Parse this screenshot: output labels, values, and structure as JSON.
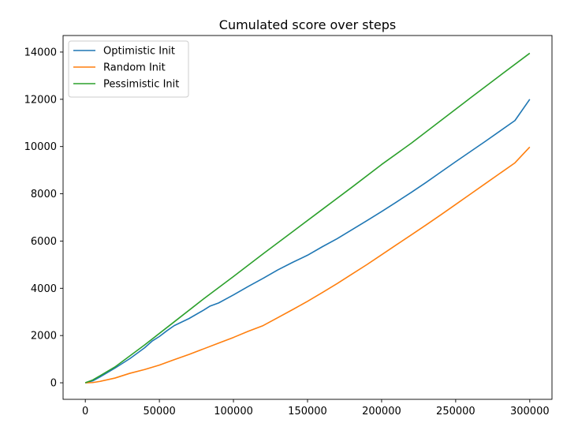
{
  "chart_data": {
    "type": "line",
    "title": "Cumulated score over steps",
    "xlabel": "",
    "ylabel": "",
    "xlim": [
      -15000,
      315000
    ],
    "ylim": [
      -700,
      14700
    ],
    "xticks": [
      0,
      50000,
      100000,
      150000,
      200000,
      250000,
      300000
    ],
    "yticks": [
      0,
      2000,
      4000,
      6000,
      8000,
      10000,
      12000,
      14000
    ],
    "grid": false,
    "legend_position": "top-left",
    "series": [
      {
        "name": "Optimistic Init",
        "color": "#1f77b4",
        "x": [
          0,
          5000,
          10000,
          20000,
          30000,
          40000,
          45000,
          50000,
          55000,
          60000,
          70000,
          80000,
          84000,
          90000,
          100000,
          110000,
          120000,
          130000,
          140000,
          150000,
          160000,
          170000,
          180000,
          190000,
          200000,
          210000,
          220000,
          230000,
          240000,
          250000,
          260000,
          270000,
          280000,
          290000,
          300000
        ],
        "y": [
          0,
          80,
          250,
          620,
          1020,
          1480,
          1760,
          1960,
          2200,
          2420,
          2720,
          3080,
          3240,
          3380,
          3720,
          4080,
          4420,
          4780,
          5100,
          5400,
          5760,
          6100,
          6480,
          6860,
          7250,
          7650,
          8060,
          8480,
          8920,
          9360,
          9790,
          10220,
          10660,
          11100,
          12000
        ]
      },
      {
        "name": "Random Init",
        "color": "#ff7f0e",
        "x": [
          0,
          5000,
          10000,
          20000,
          30000,
          40000,
          50000,
          60000,
          70000,
          80000,
          90000,
          100000,
          110000,
          120000,
          130000,
          140000,
          150000,
          160000,
          170000,
          180000,
          190000,
          200000,
          210000,
          220000,
          230000,
          240000,
          250000,
          260000,
          270000,
          280000,
          290000,
          300000
        ],
        "y": [
          0,
          10,
          60,
          200,
          400,
          560,
          750,
          980,
          1200,
          1440,
          1680,
          1920,
          2180,
          2420,
          2760,
          3100,
          3450,
          3820,
          4200,
          4600,
          5000,
          5420,
          5840,
          6260,
          6680,
          7110,
          7550,
          7990,
          8430,
          8870,
          9310,
          9980
        ]
      },
      {
        "name": "Pessimistic Init",
        "color": "#2ca02c",
        "x": [
          0,
          5000,
          10000,
          20000,
          40000,
          60000,
          80000,
          100000,
          120000,
          140000,
          160000,
          180000,
          200000,
          220000,
          240000,
          260000,
          280000,
          300000
        ],
        "y": [
          0,
          120,
          300,
          670,
          1600,
          2580,
          3560,
          4500,
          5460,
          6400,
          7340,
          8280,
          9240,
          10140,
          11100,
          12060,
          13010,
          13950
        ]
      }
    ]
  }
}
